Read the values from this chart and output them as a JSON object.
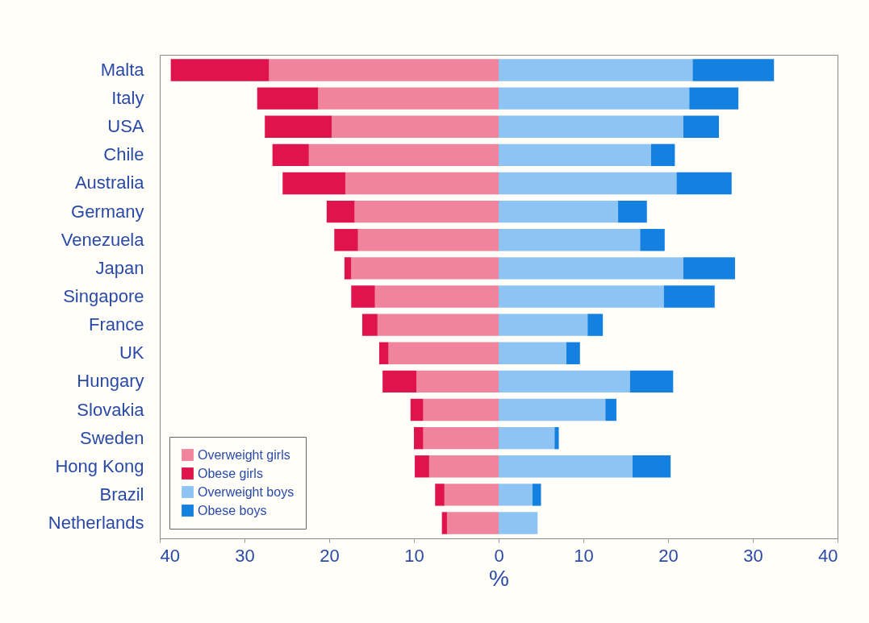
{
  "chart_data": {
    "type": "bar",
    "orientation": "horizontal",
    "stacked": true,
    "xlabel": "%",
    "categories": [
      "Malta",
      "Italy",
      "USA",
      "Chile",
      "Australia",
      "Germany",
      "Venezuela",
      "Japan",
      "Singapore",
      "France",
      "UK",
      "Hungary",
      "Slovakia",
      "Sweden",
      "Hong Kong",
      "Brazil",
      "Netherlands"
    ],
    "series": [
      {
        "name": "Overweight girls",
        "color": "#f0849c",
        "values": [
          -27.1,
          -21.3,
          -19.7,
          -22.4,
          -18.1,
          -17.0,
          -16.6,
          -17.4,
          -14.6,
          -14.3,
          -13.0,
          -9.7,
          -8.9,
          -8.9,
          -8.2,
          -6.4,
          -6.1
        ]
      },
      {
        "name": "Obese girls",
        "color": "#e0144c",
        "values": [
          -11.6,
          -7.2,
          -7.9,
          -4.3,
          -7.4,
          -3.3,
          -2.8,
          -0.8,
          -2.8,
          -1.8,
          -1.1,
          -4.0,
          -1.5,
          -1.1,
          -1.7,
          -1.1,
          -0.6
        ]
      },
      {
        "name": "Overweight boys",
        "color": "#8ec4f4",
        "values": [
          22.9,
          22.5,
          21.8,
          18.0,
          21.0,
          14.1,
          16.7,
          21.8,
          19.5,
          10.5,
          8.0,
          15.5,
          12.6,
          6.6,
          15.8,
          4.0,
          4.6
        ]
      },
      {
        "name": "Obese boys",
        "color": "#1480e0",
        "values": [
          9.6,
          5.8,
          4.2,
          2.8,
          6.5,
          3.4,
          2.9,
          6.1,
          6.0,
          1.8,
          1.6,
          5.1,
          1.3,
          0.5,
          4.5,
          1.0,
          0
        ]
      }
    ],
    "xlim": [
      -40,
      40
    ],
    "xticks": [
      {
        "value": -40,
        "label": "40"
      },
      {
        "value": -30,
        "label": "30"
      },
      {
        "value": -20,
        "label": "20"
      },
      {
        "value": -10,
        "label": "10"
      },
      0,
      10,
      20,
      30,
      40
    ],
    "grid": false,
    "legend": "bottom left"
  }
}
